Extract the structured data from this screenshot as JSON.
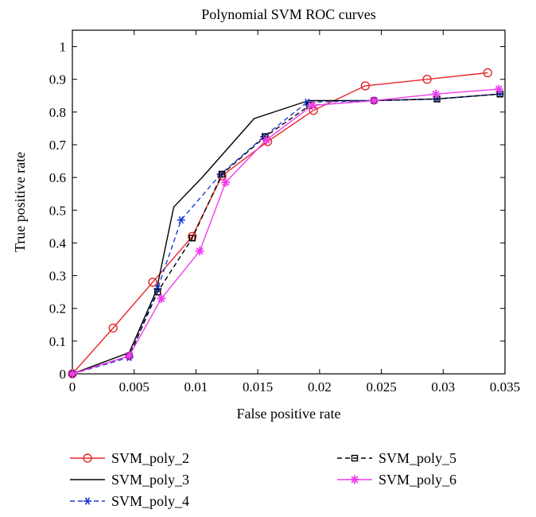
{
  "chart_data": {
    "type": "line",
    "title": "Polynomial SVM ROC curves",
    "xlabel": "False positive rate",
    "ylabel": "True positive rate",
    "xlim": [
      0,
      0.035
    ],
    "ylim": [
      0,
      1.05
    ],
    "x_ticks": [
      0,
      0.005,
      0.01,
      0.015,
      0.02,
      0.025,
      0.03,
      0.035
    ],
    "x_tick_labels": [
      "0",
      "0.005",
      "0.01",
      "0.015",
      "0.02",
      "0.025",
      "0.03",
      "0.035"
    ],
    "y_ticks": [
      0,
      0.1,
      0.2,
      0.3,
      0.4,
      0.5,
      0.6,
      0.7,
      0.8,
      0.9,
      1
    ],
    "y_tick_labels": [
      "0",
      "0.1",
      "0.2",
      "0.3",
      "0.4",
      "0.5",
      "0.6",
      "0.7",
      "0.8",
      "0.9",
      "1"
    ],
    "grid": false,
    "legend_position": "below",
    "series": [
      {
        "name": "SVM_poly_2",
        "color": "#e8262c",
        "line_style": "solid",
        "marker": "circle",
        "points": [
          [
            0,
            0
          ],
          [
            0.0033,
            0.14
          ],
          [
            0.0065,
            0.28
          ],
          [
            0.0097,
            0.42
          ],
          [
            0.0121,
            0.605
          ],
          [
            0.0158,
            0.71
          ],
          [
            0.0195,
            0.805
          ],
          [
            0.0237,
            0.88
          ],
          [
            0.0287,
            0.9
          ],
          [
            0.0336,
            0.92
          ]
        ]
      },
      {
        "name": "SVM_poly_3",
        "color": "#000000",
        "line_style": "solid",
        "marker": "none",
        "points": [
          [
            0,
            0
          ],
          [
            0.0046,
            0.065
          ],
          [
            0.0068,
            0.255
          ],
          [
            0.0082,
            0.51
          ],
          [
            0.0105,
            0.6
          ],
          [
            0.0147,
            0.78
          ],
          [
            0.0191,
            0.835
          ],
          [
            0.0244,
            0.835
          ],
          [
            0.0295,
            0.84
          ],
          [
            0.0346,
            0.855
          ]
        ]
      },
      {
        "name": "SVM_poly_4",
        "color": "#1a3cd6",
        "line_style": "dashed",
        "marker": "asterisk",
        "points": [
          [
            0,
            0
          ],
          [
            0.0046,
            0.05
          ],
          [
            0.0069,
            0.26
          ],
          [
            0.0088,
            0.47
          ],
          [
            0.012,
            0.61
          ],
          [
            0.0155,
            0.725
          ],
          [
            0.019,
            0.83
          ],
          [
            0.0244,
            0.835
          ],
          [
            0.0295,
            0.84
          ],
          [
            0.0346,
            0.855
          ]
        ]
      },
      {
        "name": "SVM_poly_5",
        "color": "#000000",
        "line_style": "dashed",
        "marker": "square",
        "points": [
          [
            0,
            0
          ],
          [
            0.0046,
            0.055
          ],
          [
            0.0069,
            0.25
          ],
          [
            0.0097,
            0.415
          ],
          [
            0.0121,
            0.61
          ],
          [
            0.0156,
            0.725
          ],
          [
            0.0192,
            0.82
          ],
          [
            0.0244,
            0.835
          ],
          [
            0.0295,
            0.84
          ],
          [
            0.0346,
            0.855
          ]
        ]
      },
      {
        "name": "SVM_poly_6",
        "color": "#f03cf0",
        "line_style": "solid",
        "marker": "star",
        "points": [
          [
            0,
            0
          ],
          [
            0.0046,
            0.055
          ],
          [
            0.0072,
            0.23
          ],
          [
            0.0103,
            0.375
          ],
          [
            0.0124,
            0.585
          ],
          [
            0.0157,
            0.715
          ],
          [
            0.0194,
            0.82
          ],
          [
            0.0244,
            0.835
          ],
          [
            0.0294,
            0.855
          ],
          [
            0.0345,
            0.87
          ]
        ]
      }
    ]
  }
}
